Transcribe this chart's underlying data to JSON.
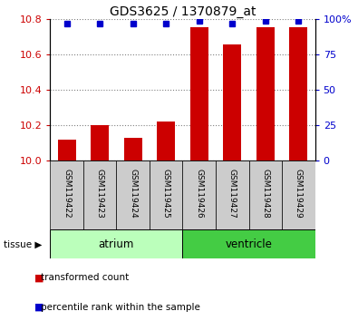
{
  "title": "GDS3625 / 1370879_at",
  "samples": [
    "GSM119422",
    "GSM119423",
    "GSM119424",
    "GSM119425",
    "GSM119426",
    "GSM119427",
    "GSM119428",
    "GSM119429"
  ],
  "transformed_counts": [
    10.12,
    10.2,
    10.13,
    10.22,
    10.755,
    10.655,
    10.755,
    10.755
  ],
  "percentile_ranks": [
    97,
    97,
    97,
    97,
    99,
    97,
    99,
    99
  ],
  "ymin": 10.0,
  "ymax": 10.8,
  "y_ticks": [
    10.0,
    10.2,
    10.4,
    10.6,
    10.8
  ],
  "y2_ticks": [
    0,
    25,
    50,
    75,
    100
  ],
  "bar_color": "#CC0000",
  "dot_color": "#0000CC",
  "atrium_color": "#BBFFBB",
  "ventricle_color": "#44CC44",
  "label_bg_color": "#CCCCCC",
  "atrium_indices": [
    0,
    1,
    2,
    3
  ],
  "ventricle_indices": [
    4,
    5,
    6,
    7
  ],
  "group_labels": [
    "atrium",
    "ventricle"
  ],
  "tissue_label": "tissue",
  "legend_bar_label": "transformed count",
  "legend_dot_label": "percentile rank within the sample"
}
